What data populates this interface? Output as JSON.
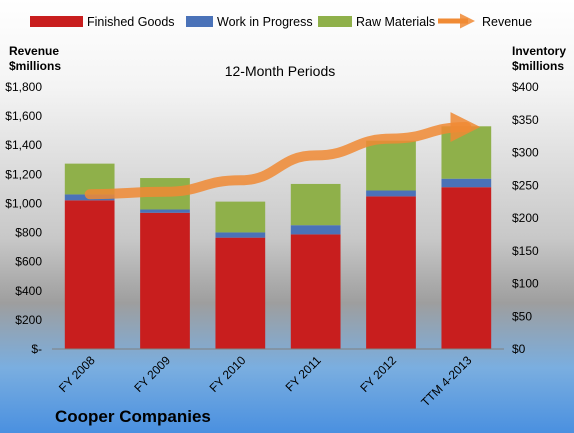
{
  "chart_data": {
    "type": "bar",
    "subtitle": "12-Month Periods",
    "company": "Cooper Companies",
    "left_axis_title": [
      "Revenue",
      "$millions"
    ],
    "right_axis_title": [
      "Inventory",
      "$millions"
    ],
    "left_ticks": [
      "$-",
      "$200",
      "$400",
      "$600",
      "$800",
      "$1,000",
      "$1,200",
      "$1,400",
      "$1,600",
      "$1,800"
    ],
    "right_ticks": [
      "$0",
      "$50",
      "$100",
      "$150",
      "$200",
      "$250",
      "$300",
      "$350",
      "$400"
    ],
    "left_ylim": [
      0,
      1800
    ],
    "right_ylim": [
      0,
      400
    ],
    "categories": [
      "FY 2008",
      "FY 2009",
      "FY 2010",
      "FY 2011",
      "FY 2012",
      "TTM 4-2013"
    ],
    "series": [
      {
        "name": "Finished Goods",
        "values": [
          227,
          208,
          170,
          175,
          233,
          247
        ],
        "color": "#c81e1e"
      },
      {
        "name": "Work in Progress",
        "values": [
          9,
          5,
          8,
          14,
          9,
          13
        ],
        "color": "#4a72b8"
      },
      {
        "name": "Raw Materials",
        "values": [
          47,
          48,
          47,
          63,
          76,
          80
        ],
        "color": "#8fb04a"
      }
    ],
    "line_series": {
      "name": "Revenue",
      "values": [
        1063,
        1080,
        1159,
        1330,
        1445,
        1525
      ],
      "color": "#f08a34"
    },
    "legend_position": "top",
    "grid": false
  }
}
